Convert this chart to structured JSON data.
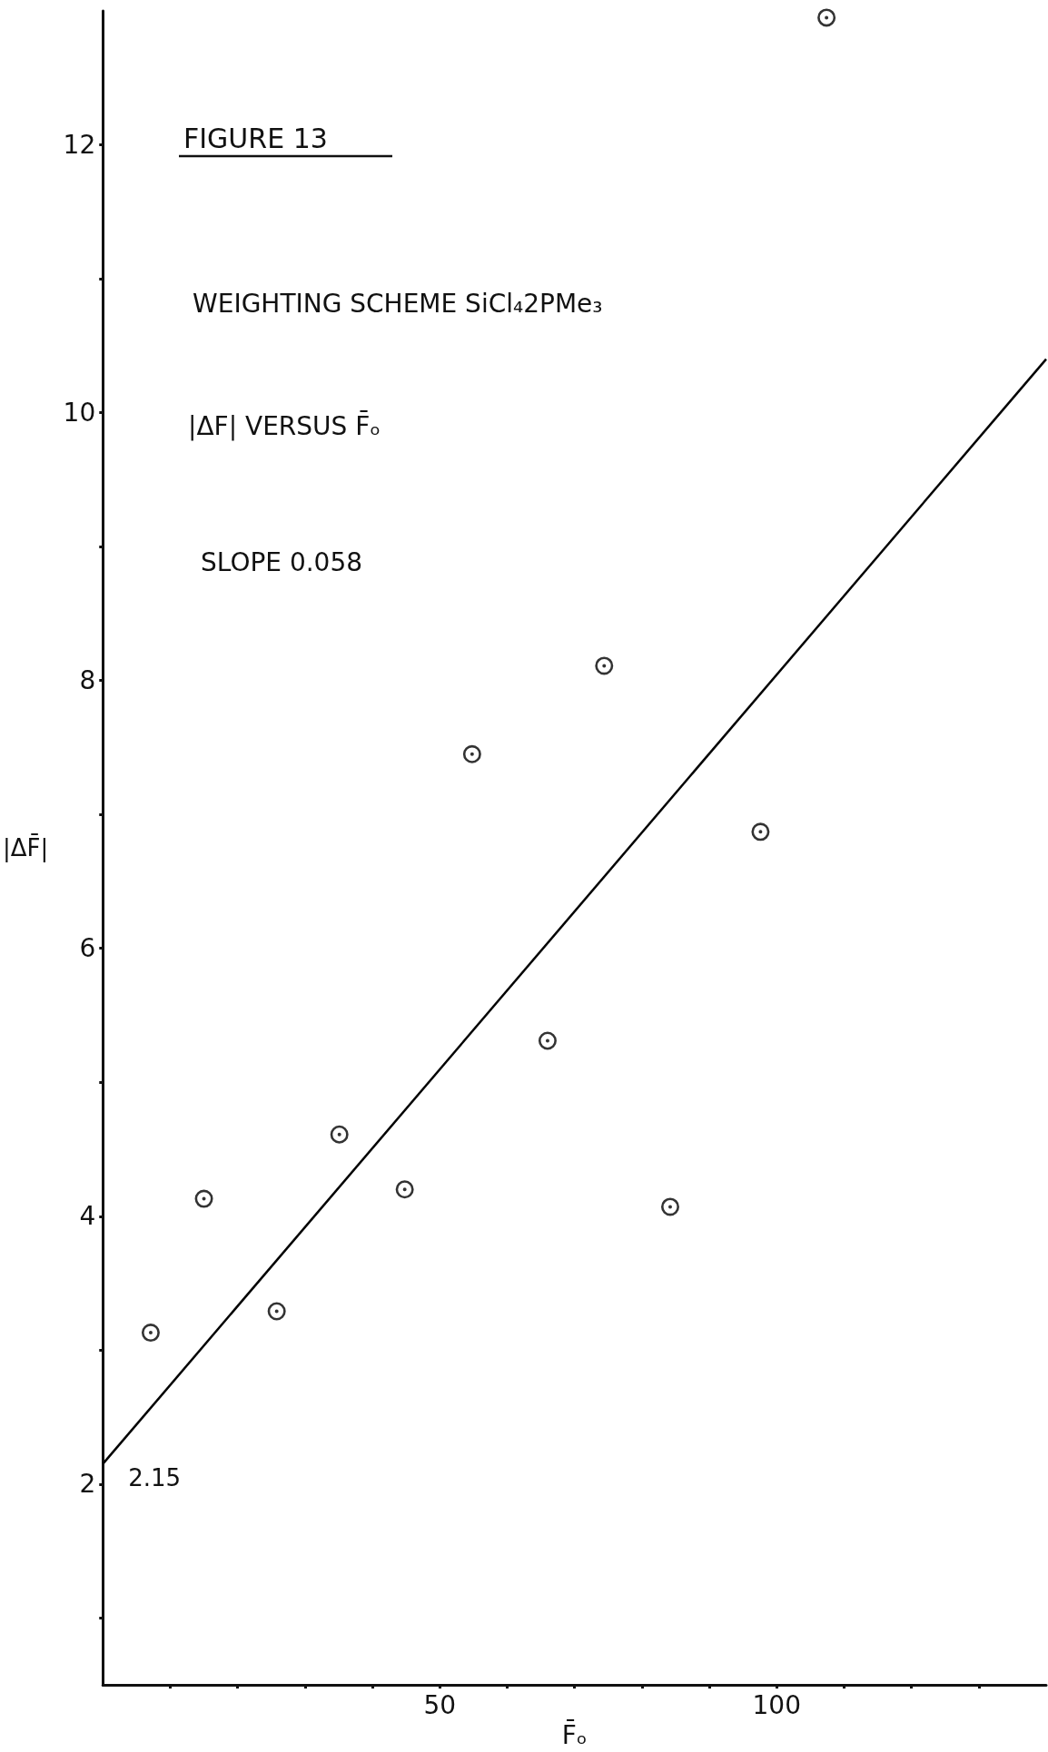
{
  "chart_data": {
    "type": "scatter",
    "title": "FIGURE 13",
    "subtitle": "WEIGHTING SCHEME SiCl₄2PMe₃",
    "xlabel": "F̄ₒ",
    "ylabel": "|ΔF̄|",
    "annotations": [
      "|ΔF| VERSUS F̄ₒ",
      "SLOPE 0.058",
      {
        "text": "2.15",
        "x": 0,
        "y": 2.15
      }
    ],
    "xlim": [
      0,
      140
    ],
    "ylim": [
      0.5,
      13
    ],
    "xticks": [
      {
        "value": 10,
        "label": null
      },
      {
        "value": 20,
        "label": null
      },
      {
        "value": 30,
        "label": null
      },
      {
        "value": 40,
        "label": null
      },
      50,
      {
        "value": 60,
        "label": null
      },
      {
        "value": 70,
        "label": null
      },
      {
        "value": 80,
        "label": null
      },
      {
        "value": 90,
        "label": null
      },
      100,
      {
        "value": 110,
        "label": null
      },
      {
        "value": 120,
        "label": null
      },
      {
        "value": 130,
        "label": null
      }
    ],
    "yticks": [
      {
        "value": 1,
        "label": null
      },
      2,
      {
        "value": 3,
        "label": null
      },
      4,
      {
        "value": 5,
        "label": null
      },
      6,
      {
        "value": 7,
        "label": null
      },
      8,
      {
        "value": 9,
        "label": null
      },
      10,
      {
        "value": 11,
        "label": null
      },
      12
    ],
    "grid": false,
    "marker": "circle",
    "series": [
      {
        "color": "#000000",
        "x": [
          7.1,
          15.0,
          25.8,
          35.1,
          44.8,
          54.8,
          66.0,
          74.4,
          84.2,
          97.6,
          107.4
        ],
        "values": [
          3.13,
          4.13,
          3.29,
          4.61,
          4.2,
          7.45,
          5.31,
          8.11,
          4.07,
          6.87,
          12.95
        ]
      },
      {
        "type": "line",
        "color": "#000000",
        "marker": "none",
        "line_style": "solid",
        "x": [
          0,
          140
        ],
        "values": [
          2.15,
          10.4
        ]
      }
    ]
  }
}
